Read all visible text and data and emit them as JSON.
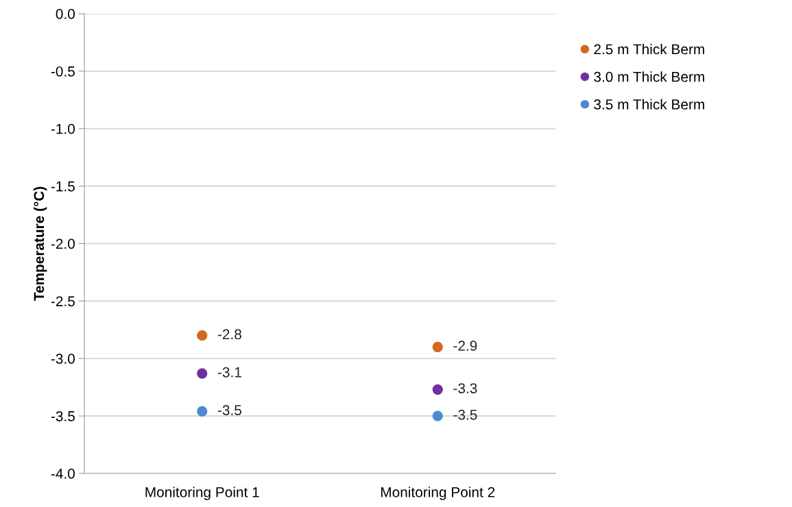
{
  "chart_data": {
    "type": "scatter",
    "ylabel": "Temperature (°C)",
    "categories": [
      "Monitoring Point 1",
      "Monitoring Point 2"
    ],
    "series": [
      {
        "name": "2.5 m Thick Berm",
        "color": "#d2691e",
        "values": [
          -2.8,
          -2.9
        ],
        "value_labels": [
          "-2.8",
          "-2.9"
        ]
      },
      {
        "name": "3.0 m Thick Berm",
        "color": "#7030a0",
        "values": [
          -3.13,
          -3.27
        ],
        "value_labels": [
          "-3.1",
          "-3.3"
        ]
      },
      {
        "name": "3.5 m Thick Berm",
        "color": "#4a8ccf",
        "values": [
          -3.46,
          -3.5
        ],
        "value_labels": [
          "-3.5",
          "-3.5"
        ]
      }
    ],
    "ylim": [
      -4.0,
      0.0
    ],
    "yticks": [
      {
        "value": -4.0,
        "label": "-4.0"
      },
      {
        "value": -3.5,
        "label": "-3.5"
      },
      {
        "value": -3.0,
        "label": "-3.0"
      },
      {
        "value": -2.5,
        "label": "-2.5"
      },
      {
        "value": -2.0,
        "label": "-2.0"
      },
      {
        "value": -1.5,
        "label": "-1.5"
      },
      {
        "value": -1.0,
        "label": "-1.0"
      },
      {
        "value": -0.5,
        "label": "-0.5"
      },
      {
        "value": 0.0,
        "label": "0.0"
      }
    ],
    "grid": "y",
    "legend": "right",
    "marker": "circle"
  }
}
